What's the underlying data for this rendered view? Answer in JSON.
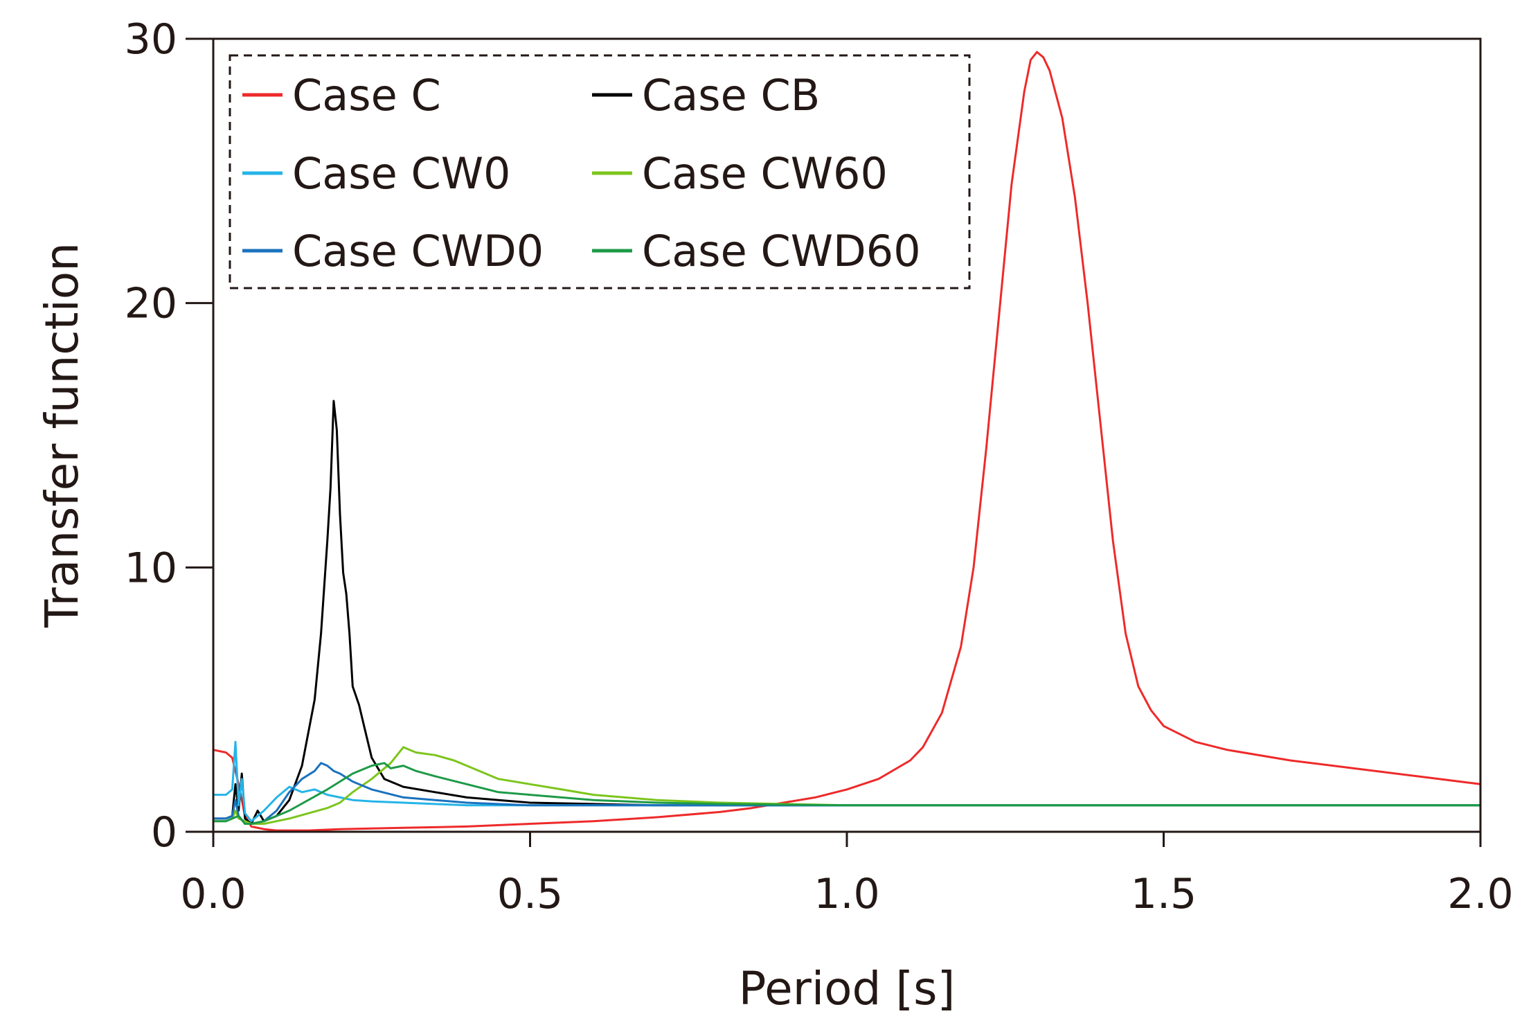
{
  "chart_data": {
    "type": "line",
    "title": "",
    "xlabel": "Period [s]",
    "ylabel": "Transfer function",
    "xlim": [
      0.0,
      2.0
    ],
    "ylim": [
      0,
      30
    ],
    "grid": false,
    "xticks": [
      0.0,
      0.5,
      1.0,
      1.5,
      2.0
    ],
    "xtick_labels": [
      "0.0",
      "0.5",
      "1.0",
      "1.5",
      "2.0"
    ],
    "yticks": [
      0,
      10,
      20,
      30
    ],
    "ytick_labels": [
      "0",
      "10",
      "20",
      "30"
    ],
    "legend": {
      "placement": "top-left",
      "columns": 2,
      "border": "dashed"
    },
    "series": [
      {
        "name": "Case C",
        "color": "#ee2a2a",
        "x": [
          0.0,
          0.02,
          0.03,
          0.04,
          0.05,
          0.06,
          0.08,
          0.1,
          0.15,
          0.2,
          0.3,
          0.4,
          0.5,
          0.6,
          0.7,
          0.8,
          0.85,
          0.9,
          0.95,
          1.0,
          1.05,
          1.1,
          1.12,
          1.15,
          1.18,
          1.2,
          1.22,
          1.24,
          1.26,
          1.28,
          1.29,
          1.3,
          1.31,
          1.32,
          1.34,
          1.36,
          1.38,
          1.4,
          1.42,
          1.44,
          1.46,
          1.48,
          1.5,
          1.55,
          1.6,
          1.7,
          1.8,
          1.9,
          2.0
        ],
        "y": [
          3.1,
          3.0,
          2.8,
          1.8,
          0.6,
          0.2,
          0.1,
          0.05,
          0.05,
          0.1,
          0.15,
          0.2,
          0.3,
          0.4,
          0.55,
          0.75,
          0.9,
          1.1,
          1.3,
          1.6,
          2.0,
          2.7,
          3.2,
          4.5,
          7.0,
          10.0,
          14.5,
          19.5,
          24.5,
          28.0,
          29.2,
          29.5,
          29.3,
          28.8,
          27.0,
          24.0,
          20.0,
          15.5,
          11.0,
          7.5,
          5.5,
          4.6,
          4.0,
          3.4,
          3.1,
          2.7,
          2.4,
          2.1,
          1.8
        ]
      },
      {
        "name": "Case CB",
        "color": "#000000",
        "x": [
          0.0,
          0.02,
          0.03,
          0.035,
          0.04,
          0.045,
          0.05,
          0.06,
          0.07,
          0.08,
          0.1,
          0.12,
          0.14,
          0.16,
          0.17,
          0.18,
          0.185,
          0.19,
          0.195,
          0.2,
          0.205,
          0.21,
          0.215,
          0.22,
          0.23,
          0.24,
          0.25,
          0.27,
          0.3,
          0.35,
          0.4,
          0.45,
          0.5,
          0.6,
          0.7,
          0.8,
          0.9,
          1.0,
          1.2,
          1.4,
          1.6,
          1.8,
          2.0
        ],
        "y": [
          0.5,
          0.5,
          0.6,
          1.8,
          0.8,
          2.2,
          0.5,
          0.3,
          0.8,
          0.4,
          0.6,
          1.2,
          2.5,
          5.0,
          7.5,
          11.0,
          13.0,
          16.3,
          15.2,
          12.0,
          9.8,
          9.0,
          7.5,
          5.5,
          4.8,
          3.8,
          2.8,
          2.0,
          1.7,
          1.5,
          1.3,
          1.2,
          1.1,
          1.05,
          1.0,
          1.0,
          1.0,
          1.0,
          1.0,
          1.0,
          1.0,
          1.0,
          1.0
        ]
      },
      {
        "name": "Case CW0",
        "color": "#25b4e8",
        "x": [
          0.0,
          0.02,
          0.03,
          0.035,
          0.04,
          0.045,
          0.05,
          0.06,
          0.07,
          0.08,
          0.1,
          0.12,
          0.14,
          0.16,
          0.18,
          0.2,
          0.22,
          0.25,
          0.3,
          0.35,
          0.4,
          0.5,
          0.6,
          0.8,
          1.0,
          1.2,
          1.5,
          1.8,
          2.0
        ],
        "y": [
          1.4,
          1.4,
          1.6,
          3.4,
          1.0,
          2.0,
          0.7,
          0.4,
          0.6,
          0.8,
          1.3,
          1.7,
          1.5,
          1.6,
          1.4,
          1.3,
          1.2,
          1.15,
          1.1,
          1.05,
          1.0,
          1.0,
          1.0,
          1.0,
          1.0,
          1.0,
          1.0,
          1.0,
          1.0
        ]
      },
      {
        "name": "Case CW60",
        "color": "#7cc51c",
        "x": [
          0.0,
          0.02,
          0.03,
          0.035,
          0.04,
          0.05,
          0.06,
          0.08,
          0.1,
          0.12,
          0.15,
          0.18,
          0.2,
          0.22,
          0.25,
          0.28,
          0.3,
          0.32,
          0.35,
          0.38,
          0.4,
          0.42,
          0.45,
          0.5,
          0.55,
          0.6,
          0.7,
          0.8,
          0.9,
          1.0,
          1.2,
          1.5,
          1.8,
          2.0
        ],
        "y": [
          0.4,
          0.4,
          0.5,
          0.8,
          0.5,
          0.4,
          0.3,
          0.3,
          0.4,
          0.5,
          0.7,
          0.9,
          1.1,
          1.5,
          2.0,
          2.6,
          3.2,
          3.0,
          2.9,
          2.7,
          2.5,
          2.3,
          2.0,
          1.8,
          1.6,
          1.4,
          1.2,
          1.1,
          1.05,
          1.0,
          1.0,
          1.0,
          1.0,
          1.0
        ]
      },
      {
        "name": "Case CWD0",
        "color": "#1a72bd",
        "x": [
          0.0,
          0.02,
          0.03,
          0.035,
          0.04,
          0.05,
          0.06,
          0.08,
          0.1,
          0.12,
          0.14,
          0.16,
          0.17,
          0.18,
          0.19,
          0.2,
          0.22,
          0.25,
          0.3,
          0.35,
          0.4,
          0.5,
          0.6,
          0.8,
          1.0,
          1.2,
          1.5,
          1.8,
          2.0
        ],
        "y": [
          0.5,
          0.5,
          0.6,
          1.2,
          0.6,
          0.3,
          0.3,
          0.4,
          0.8,
          1.5,
          2.0,
          2.3,
          2.6,
          2.5,
          2.3,
          2.2,
          1.9,
          1.6,
          1.3,
          1.2,
          1.1,
          1.0,
          1.0,
          1.0,
          1.0,
          1.0,
          1.0,
          1.0,
          1.0
        ]
      },
      {
        "name": "Case CWD60",
        "color": "#1d9a47",
        "x": [
          0.0,
          0.02,
          0.03,
          0.04,
          0.05,
          0.06,
          0.08,
          0.1,
          0.12,
          0.15,
          0.18,
          0.2,
          0.22,
          0.25,
          0.27,
          0.28,
          0.3,
          0.32,
          0.35,
          0.4,
          0.45,
          0.5,
          0.6,
          0.7,
          0.8,
          1.0,
          1.2,
          1.5,
          1.8,
          2.0
        ],
        "y": [
          0.4,
          0.4,
          0.5,
          0.6,
          0.3,
          0.3,
          0.4,
          0.6,
          0.8,
          1.2,
          1.6,
          1.9,
          2.2,
          2.5,
          2.6,
          2.4,
          2.5,
          2.3,
          2.1,
          1.8,
          1.5,
          1.4,
          1.2,
          1.1,
          1.05,
          1.0,
          1.0,
          1.0,
          1.0,
          1.0
        ]
      }
    ]
  }
}
